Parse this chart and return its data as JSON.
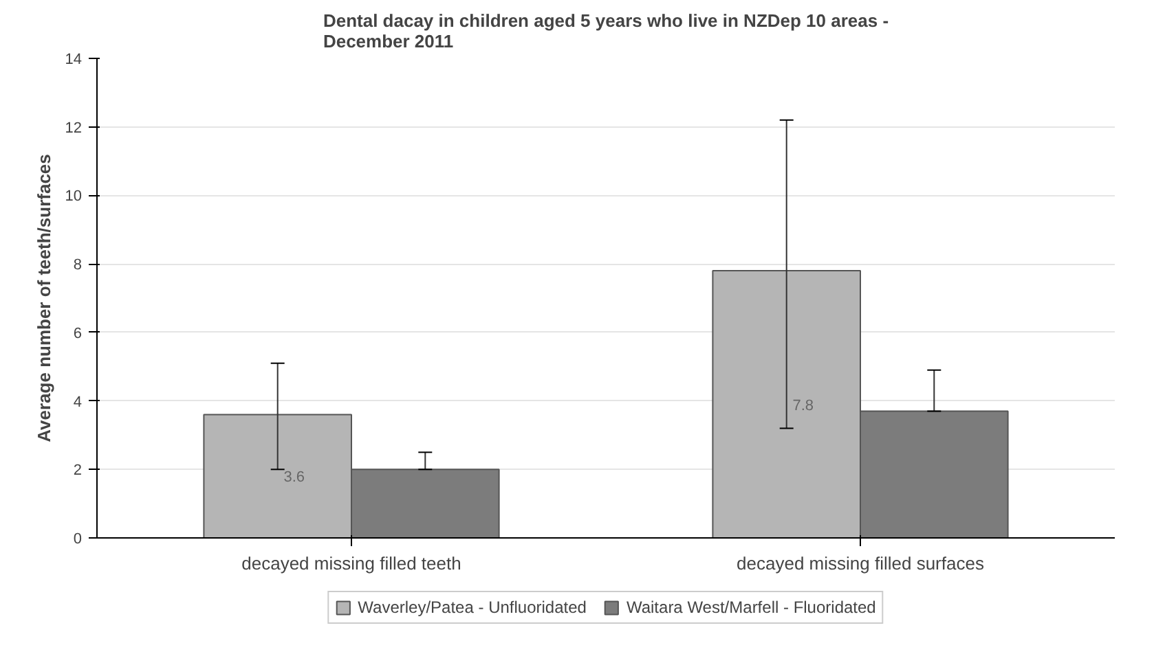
{
  "chart_data": {
    "type": "bar",
    "title": "Dental dacay in children aged 5 years who live in NZDep 10 areas -\nDecember 2011",
    "ylabel": "Average number of teeth/surfaces",
    "categories": [
      "decayed missing filled teeth",
      "decayed missing filled surfaces"
    ],
    "series": [
      {
        "name": "Waverley/Patea - Unfluoridated",
        "color": "#b5b5b5",
        "values": [
          3.6,
          7.8
        ],
        "errors": [
          [
            2.0,
            5.1
          ],
          [
            3.2,
            12.2
          ]
        ],
        "value_labels": [
          "3.6",
          "7.8"
        ]
      },
      {
        "name": "Waitara West/Marfell - Fluoridated",
        "color": "#7c7c7c",
        "values": [
          2.0,
          3.7
        ],
        "errors": [
          [
            2.0,
            2.5
          ],
          [
            3.7,
            4.9
          ]
        ]
      }
    ],
    "ylim": [
      0,
      14
    ],
    "yticks": [
      0,
      2,
      4,
      6,
      8,
      10,
      12,
      14
    ],
    "grid": "y",
    "legend": "bottom"
  }
}
